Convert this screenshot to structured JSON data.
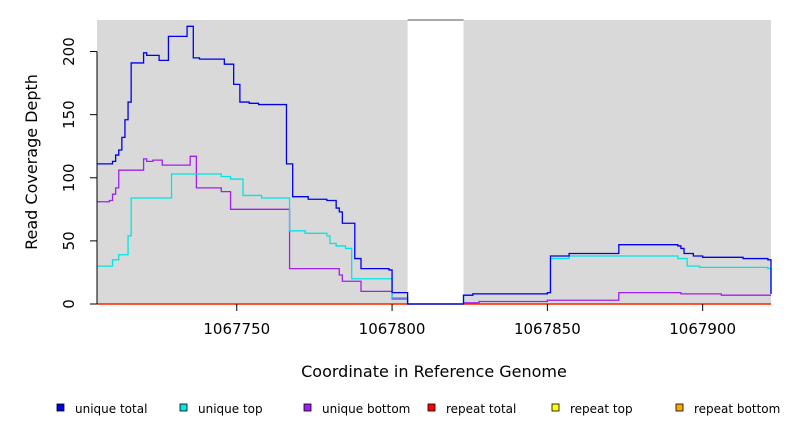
{
  "chart_data": {
    "type": "line",
    "xlabel": "Coordinate in Reference Genome",
    "ylabel": "Read Coverage Depth",
    "xlim": [
      1067705,
      1067922
    ],
    "ylim": [
      0,
      225
    ],
    "x_ticks": [
      1067750,
      1067800,
      1067850,
      1067900
    ],
    "y_ticks": [
      0,
      50,
      100,
      150,
      200
    ],
    "gap_region": [
      1067805,
      1067823
    ],
    "background_color": "#d9d9d9",
    "series": [
      {
        "name": "unique total",
        "color": "#0000ee",
        "points": [
          [
            1067705,
            111
          ],
          [
            1067709,
            111
          ],
          [
            1067710,
            113
          ],
          [
            1067711,
            118
          ],
          [
            1067712,
            122
          ],
          [
            1067713,
            132
          ],
          [
            1067714,
            146
          ],
          [
            1067715,
            160
          ],
          [
            1067716,
            191
          ],
          [
            1067720,
            199
          ],
          [
            1067721,
            197
          ],
          [
            1067725,
            193
          ],
          [
            1067728,
            212
          ],
          [
            1067734,
            220
          ],
          [
            1067736,
            195
          ],
          [
            1067738,
            194
          ],
          [
            1067746,
            190
          ],
          [
            1067749,
            174
          ],
          [
            1067751,
            160
          ],
          [
            1067754,
            159
          ],
          [
            1067757,
            158
          ],
          [
            1067766,
            111
          ],
          [
            1067768,
            85
          ],
          [
            1067773,
            83
          ],
          [
            1067779,
            82
          ],
          [
            1067782,
            76
          ],
          [
            1067783,
            73
          ],
          [
            1067784,
            64
          ],
          [
            1067788,
            36
          ],
          [
            1067790,
            28
          ],
          [
            1067799,
            27
          ],
          [
            1067800,
            9
          ],
          [
            1067805,
            0
          ],
          [
            1067823,
            7
          ],
          [
            1067826,
            8
          ],
          [
            1067850,
            9
          ],
          [
            1067851,
            38
          ],
          [
            1067857,
            40
          ],
          [
            1067873,
            47
          ],
          [
            1067892,
            46
          ],
          [
            1067893,
            44
          ],
          [
            1067894,
            40
          ],
          [
            1067897,
            38
          ],
          [
            1067900,
            37
          ],
          [
            1067913,
            36
          ],
          [
            1067921,
            35
          ],
          [
            1067922,
            8
          ]
        ]
      },
      {
        "name": "unique top",
        "color": "#00e5e5",
        "points": [
          [
            1067705,
            30
          ],
          [
            1067710,
            35
          ],
          [
            1067712,
            39
          ],
          [
            1067715,
            54
          ],
          [
            1067716,
            84
          ],
          [
            1067729,
            103
          ],
          [
            1067745,
            101
          ],
          [
            1067748,
            99
          ],
          [
            1067752,
            86
          ],
          [
            1067758,
            84
          ],
          [
            1067767,
            58
          ],
          [
            1067772,
            56
          ],
          [
            1067779,
            54
          ],
          [
            1067780,
            48
          ],
          [
            1067782,
            46
          ],
          [
            1067785,
            44
          ],
          [
            1067787,
            20
          ],
          [
            1067800,
            5
          ],
          [
            1067805,
            0
          ],
          [
            1067823,
            7
          ],
          [
            1067826,
            8
          ],
          [
            1067850,
            9
          ],
          [
            1067851,
            36
          ],
          [
            1067857,
            38
          ],
          [
            1067892,
            36
          ],
          [
            1067895,
            30
          ],
          [
            1067899,
            29
          ],
          [
            1067921,
            28
          ],
          [
            1067922,
            8
          ]
        ]
      },
      {
        "name": "unique bottom",
        "color": "#a020f0",
        "points": [
          [
            1067705,
            81
          ],
          [
            1067709,
            82
          ],
          [
            1067710,
            87
          ],
          [
            1067711,
            92
          ],
          [
            1067712,
            106
          ],
          [
            1067720,
            115
          ],
          [
            1067721,
            113
          ],
          [
            1067723,
            114
          ],
          [
            1067726,
            110
          ],
          [
            1067735,
            117
          ],
          [
            1067737,
            92
          ],
          [
            1067745,
            89
          ],
          [
            1067748,
            75
          ],
          [
            1067767,
            28
          ],
          [
            1067783,
            23
          ],
          [
            1067784,
            18
          ],
          [
            1067790,
            10
          ],
          [
            1067800,
            4
          ],
          [
            1067805,
            0
          ],
          [
            1067823,
            1
          ],
          [
            1067828,
            2
          ],
          [
            1067850,
            3
          ],
          [
            1067873,
            9
          ],
          [
            1067893,
            8
          ],
          [
            1067906,
            7
          ],
          [
            1067915,
            7
          ],
          [
            1067922,
            7
          ]
        ]
      },
      {
        "name": "repeat total",
        "color": "#ff0000",
        "points": [
          [
            1067705,
            0
          ],
          [
            1067922,
            0
          ]
        ]
      },
      {
        "name": "repeat top",
        "color": "#ffff00",
        "points": [
          [
            1067705,
            0
          ],
          [
            1067922,
            0
          ]
        ]
      },
      {
        "name": "repeat bottom",
        "color": "#ffa500",
        "points": [
          [
            1067705,
            0
          ],
          [
            1067922,
            0
          ]
        ]
      }
    ]
  }
}
